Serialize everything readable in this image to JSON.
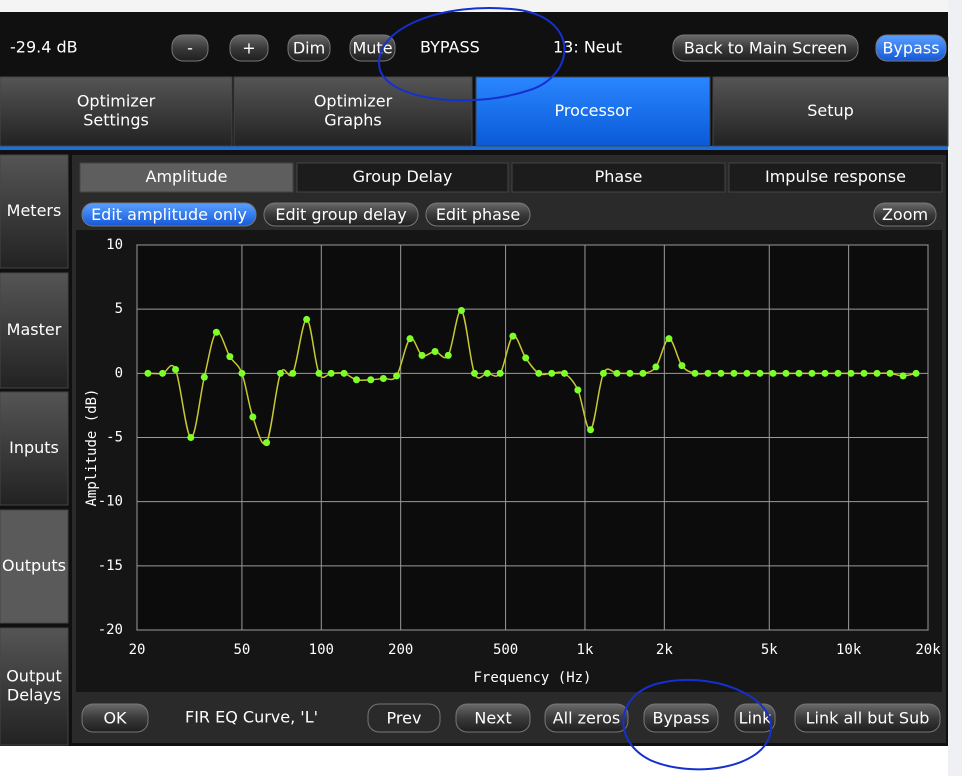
{
  "top_bar": {
    "level": "-29.4 dB",
    "buttons": [
      "-",
      "+",
      "Dim",
      "Mute"
    ],
    "status": "BYPASS",
    "preset": "13: Neut",
    "back": "Back to Main Screen",
    "bypass": "Bypass"
  },
  "main_tabs": [
    [
      "Optimizer",
      "Settings"
    ],
    [
      "Optimizer",
      "Graphs"
    ],
    [
      "Processor"
    ],
    [
      "Setup"
    ]
  ],
  "side_tabs": [
    [
      "Meters"
    ],
    [
      "Master"
    ],
    [
      "Inputs"
    ],
    [
      "Outputs"
    ],
    [
      "Output",
      "Delays"
    ]
  ],
  "graph_tabs": [
    "Amplitude",
    "Group Delay",
    "Phase",
    "Impulse response"
  ],
  "edit_buttons": [
    "Edit amplitude only",
    "Edit group delay",
    "Edit phase"
  ],
  "zoom": "Zoom",
  "chart_data": {
    "type": "line",
    "xlabel": "Frequency (Hz)",
    "ylabel": "Amplitude (dB)",
    "x": [
      22,
      25,
      28,
      32,
      36,
      40,
      45,
      50,
      55,
      62,
      70,
      78,
      88,
      98,
      109,
      122,
      136,
      154,
      172,
      193,
      217,
      241,
      270,
      303,
      340,
      381,
      426,
      477,
      533,
      596,
      668,
      748,
      836,
      940,
      1050,
      1175,
      1322,
      1481,
      1659,
      1858,
      2082,
      2332,
      2613,
      2927,
      3279,
      3673,
      4115,
      4610,
      5165,
      5786,
      6482,
      7262,
      8135,
      9114,
      10210,
      11438,
      12814,
      14356,
      16083,
      18017
    ],
    "series": [
      {
        "color": "#c8c832",
        "marker_color": "#7dff2a",
        "values": [
          0,
          0,
          0.3,
          -5,
          -0.3,
          3.2,
          1.3,
          0,
          -3.4,
          -5.4,
          0,
          0,
          4.2,
          0,
          0,
          0,
          -0.5,
          -0.5,
          -0.4,
          -0.2,
          2.7,
          1.4,
          1.7,
          1.4,
          4.9,
          0,
          0,
          0,
          2.9,
          1.2,
          0,
          0,
          0,
          -1.3,
          -4.4,
          0,
          0,
          0,
          0,
          0.5,
          2.7,
          0.6,
          0,
          0,
          0,
          0,
          0,
          0,
          0,
          0,
          0,
          0,
          0,
          0,
          0,
          0,
          0,
          0,
          -0.2,
          0
        ]
      }
    ],
    "xscale": "log",
    "xlim": [
      20,
      20000
    ],
    "ylim": [
      -20,
      10
    ],
    "xticks": [
      20,
      50,
      100,
      200,
      500,
      {
        "value": 1000,
        "label": "1k"
      },
      {
        "value": 2000,
        "label": "2k"
      },
      {
        "value": 5000,
        "label": "5k"
      },
      {
        "value": 10000,
        "label": "10k"
      },
      {
        "value": 20000,
        "label": "20k"
      }
    ],
    "yticks": [
      -20,
      -15,
      -10,
      -5,
      0,
      5,
      10
    ],
    "grid": true
  },
  "bottom": {
    "ok": "OK",
    "curve": "FIR EQ Curve, 'L'",
    "buttons": [
      "Prev",
      "Next",
      "All zeros",
      "Bypass",
      "Link",
      "Link all but Sub"
    ]
  }
}
